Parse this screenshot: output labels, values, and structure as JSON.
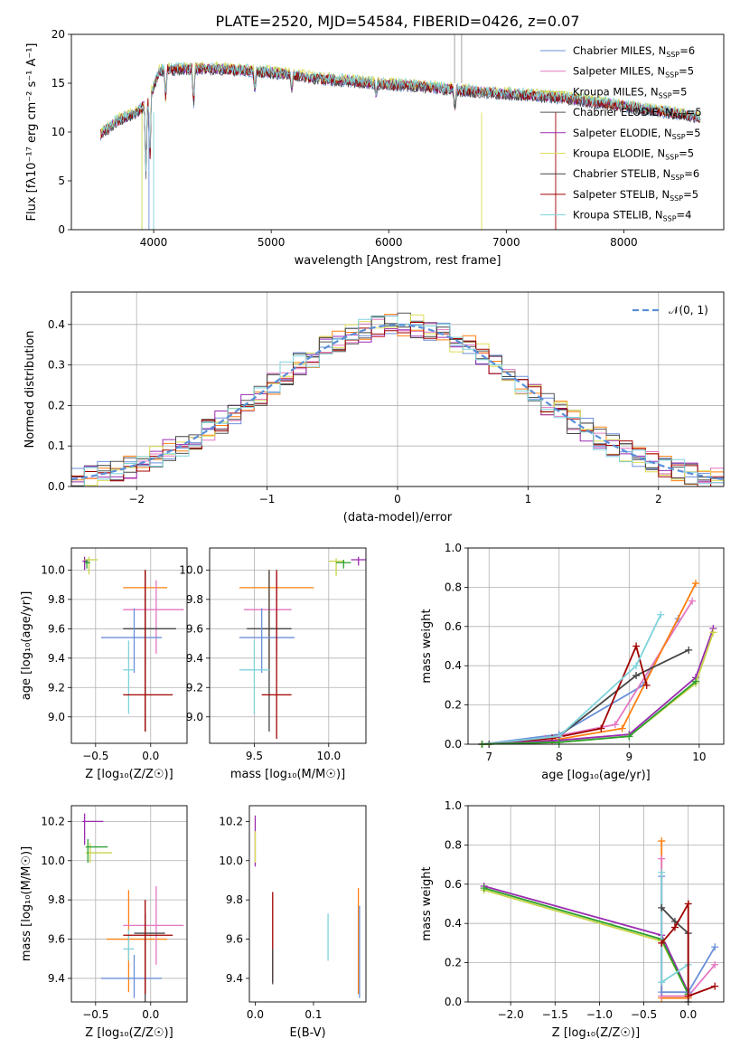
{
  "figure_title": "PLATE=2520, MJD=54584, FIBERID=0426, z=0.07",
  "colors": {
    "chabrier_miles": "#6a90d8",
    "salpeter_miles": "#e377c2",
    "kroupa_miles": "#c8d44a",
    "chabrier_elodie": "#555555",
    "salpeter_elodie": "#9a2bb0",
    "kroupa_elodie": "#dddd55",
    "chabrier_stelib": "#444444",
    "salpeter_stelib": "#a00000",
    "kroupa_stelib": "#7fd3dc",
    "orange": "#ff7f0e",
    "green": "#2ca02c",
    "normal": "#5a8fd8"
  },
  "chart_data": [
    {
      "id": "spectrum",
      "type": "line",
      "xlabel": "wavelength [Angstrom, rest frame]",
      "ylabel": "Flux [f",
      "ylabel_full": "Flux [fλ10⁻¹⁷ erg cm⁻² s⁻¹ A⁻¹]",
      "xlim": [
        3300,
        8850
      ],
      "ylim": [
        0,
        20
      ],
      "xticks": [
        "4000",
        "5000",
        "6000",
        "7000",
        "8000"
      ],
      "yticks": [
        "0",
        "5",
        "10",
        "15",
        "20"
      ],
      "legend_position": "top-right",
      "legend": [
        {
          "label": "Chabrier MILES, N",
          "sub": "SSP",
          "tail": "=6",
          "color": "#6a90d8"
        },
        {
          "label": "Salpeter MILES, N",
          "sub": "SSP",
          "tail": "=5",
          "color": "#e377c2"
        },
        {
          "label": "Kroupa MILES, N",
          "sub": "SSP",
          "tail": "=5",
          "color": "#c8d44a"
        },
        {
          "label": "Chabrier ELODIE, N",
          "sub": "SSP",
          "tail": "=5",
          "color": "#555555"
        },
        {
          "label": "Salpeter ELODIE, N",
          "sub": "SSP",
          "tail": "=5",
          "color": "#9a2bb0"
        },
        {
          "label": "Kroupa ELODIE, N",
          "sub": "SSP",
          "tail": "=5",
          "color": "#dddd55"
        },
        {
          "label": "Chabrier STELIB, N",
          "sub": "SSP",
          "tail": "=6",
          "color": "#444444"
        },
        {
          "label": "Salpeter STELIB, N",
          "sub": "SSP",
          "tail": "=5",
          "color": "#a00000"
        },
        {
          "label": "Kroupa STELIB, N",
          "sub": "SSP",
          "tail": "=4",
          "color": "#7fd3dc"
        }
      ],
      "continuum": [
        [
          3550,
          9.8
        ],
        [
          3700,
          11.2
        ],
        [
          3850,
          12.0
        ],
        [
          3950,
          13.0
        ],
        [
          4050,
          16.3
        ],
        [
          4200,
          16.5
        ],
        [
          4500,
          16.5
        ],
        [
          4800,
          16.3
        ],
        [
          5100,
          16.0
        ],
        [
          5400,
          15.5
        ],
        [
          5700,
          15.2
        ],
        [
          6000,
          14.9
        ],
        [
          6300,
          14.7
        ],
        [
          6600,
          14.3
        ],
        [
          6900,
          14.0
        ],
        [
          7200,
          13.8
        ],
        [
          7500,
          13.5
        ],
        [
          7800,
          13.0
        ],
        [
          8100,
          12.5
        ],
        [
          8400,
          12.0
        ],
        [
          8650,
          11.5
        ]
      ],
      "absorption": [
        [
          3934,
          7
        ],
        [
          3968,
          7
        ],
        [
          4102,
          3
        ],
        [
          4340,
          4
        ],
        [
          4861,
          2
        ],
        [
          5175,
          1.5
        ],
        [
          5893,
          1.2
        ],
        [
          6563,
          2
        ]
      ],
      "spikes_down": [
        [
          3900,
          0
        ],
        [
          3960,
          0
        ],
        [
          4000,
          0
        ],
        [
          6790,
          0
        ],
        [
          7420,
          0
        ]
      ],
      "spikes_up": [
        [
          6560,
          20
        ],
        [
          6620,
          20
        ]
      ]
    },
    {
      "id": "residuals",
      "type": "histogram",
      "xlabel": "(data-model)/error",
      "ylabel": "Normed distribution",
      "xlim": [
        -2.5,
        2.5
      ],
      "ylim": [
        0,
        0.48
      ],
      "xticks": [
        "−2",
        "−1",
        "0",
        "1",
        "2"
      ],
      "yticks": [
        "0.0",
        "0.1",
        "0.2",
        "0.3",
        "0.4"
      ],
      "grid": true,
      "legend_position": "top-right",
      "legend": [
        {
          "label": "𝒩(0, 1)",
          "color": "#5a8fd8",
          "style": "dashed"
        }
      ],
      "bin_width": 0.1
    },
    {
      "id": "age_vs_Z",
      "type": "errorbar",
      "xlabel": "Z [log₁₀(Z/Z☉)]",
      "ylabel": "age  [log₁₀(age/yr)]",
      "xlim": [
        -0.72,
        0.33
      ],
      "ylim": [
        8.82,
        10.15
      ],
      "xticks": [
        "−0.5",
        "0.0"
      ],
      "yticks": [
        "9.0",
        "9.2",
        "9.4",
        "9.6",
        "9.8",
        "10.0"
      ],
      "grid": true,
      "points": [
        {
          "x": -0.6,
          "y": 10.05,
          "color": "#9a2bb0"
        },
        {
          "x": -0.55,
          "y": 10.06,
          "color": "#c8d44a"
        },
        {
          "x": -0.57,
          "y": 10.05,
          "color": "#2ca02c"
        },
        {
          "x": -0.05,
          "y": 9.88,
          "color": "#ff7f0e"
        },
        {
          "x": 0.05,
          "y": 9.73,
          "color": "#e377c2"
        },
        {
          "x": -0.05,
          "y": 9.6,
          "color": "#444444"
        },
        {
          "x": -0.15,
          "y": 9.54,
          "color": "#6a90d8"
        },
        {
          "x": -0.2,
          "y": 9.32,
          "color": "#7fd3dc"
        },
        {
          "x": -0.05,
          "y": 9.15,
          "color": "#a00000"
        }
      ]
    },
    {
      "id": "age_vs_mass",
      "type": "errorbar",
      "xlabel": "mass [log₁₀(M/M☉)]",
      "ylabel": "",
      "xlim": [
        9.2,
        10.25
      ],
      "ylim": [
        8.82,
        10.15
      ],
      "xticks": [
        "9.5",
        "10.0"
      ],
      "yticks": [
        "9.0",
        "9.2",
        "9.4",
        "9.6",
        "9.8",
        "10.0"
      ],
      "grid": true
    },
    {
      "id": "weight_vs_age",
      "type": "line",
      "xlabel": "age  [log₁₀(age/yr)]",
      "ylabel": "mass weight",
      "xlim": [
        6.7,
        10.35
      ],
      "ylim": [
        0,
        1
      ],
      "xticks": [
        "7",
        "8",
        "9",
        "10"
      ],
      "yticks": [
        "0.0",
        "0.2",
        "0.4",
        "0.6",
        "0.8",
        "1.0"
      ],
      "grid": true,
      "series": [
        {
          "color": "#6a90d8",
          "x": [
            6.9,
            8.0,
            9.2,
            9.7
          ],
          "y": [
            0.0,
            0.05,
            0.3,
            0.64
          ]
        },
        {
          "color": "#e377c2",
          "x": [
            6.9,
            7.8,
            8.8,
            9.9
          ],
          "y": [
            0.0,
            0.03,
            0.1,
            0.73
          ]
        },
        {
          "color": "#ff7f0e",
          "x": [
            6.9,
            7.9,
            8.9,
            9.95
          ],
          "y": [
            0.0,
            0.02,
            0.08,
            0.82
          ]
        },
        {
          "color": "#444444",
          "x": [
            7.0,
            8.0,
            9.1,
            9.85
          ],
          "y": [
            0.0,
            0.04,
            0.35,
            0.48
          ]
        },
        {
          "color": "#a00000",
          "x": [
            6.9,
            7.9,
            8.6,
            9.1,
            9.25
          ],
          "y": [
            0.0,
            0.03,
            0.08,
            0.5,
            0.3
          ]
        },
        {
          "color": "#7fd3dc",
          "x": [
            6.9,
            8.0,
            9.1,
            9.45
          ],
          "y": [
            0.0,
            0.04,
            0.4,
            0.66
          ]
        },
        {
          "color": "#9a2bb0",
          "x": [
            6.9,
            8.0,
            9.0,
            9.95,
            10.2
          ],
          "y": [
            0.0,
            0.02,
            0.05,
            0.34,
            0.59
          ]
        },
        {
          "color": "#c8d44a",
          "x": [
            6.9,
            8.0,
            9.0,
            9.95,
            10.2
          ],
          "y": [
            0.0,
            0.01,
            0.04,
            0.31,
            0.57
          ]
        },
        {
          "color": "#2ca02c",
          "x": [
            6.9,
            8.0,
            9.0,
            9.95
          ],
          "y": [
            0.0,
            0.01,
            0.04,
            0.32
          ]
        }
      ]
    },
    {
      "id": "mass_vs_Z",
      "type": "errorbar",
      "xlabel": "Z [log₁₀(Z/Z☉)]",
      "ylabel": "mass [log₁₀(M/M☉)]",
      "xlim": [
        -0.72,
        0.33
      ],
      "ylim": [
        9.28,
        10.28
      ],
      "xticks": [
        "−0.5",
        "0.0"
      ],
      "yticks": [
        "9.4",
        "9.6",
        "9.8",
        "10.0",
        "10.2"
      ],
      "grid": true
    },
    {
      "id": "mass_vs_ebv",
      "type": "errorbar",
      "xlabel": "E(B-V)",
      "ylabel": "",
      "xlim": [
        -0.01,
        0.19
      ],
      "ylim": [
        9.28,
        10.28
      ],
      "xticks": [
        "0.0",
        "0.1"
      ],
      "yticks": [
        "9.4",
        "9.6",
        "9.8",
        "10.0",
        "10.2"
      ],
      "grid": false
    },
    {
      "id": "weight_vs_Z",
      "type": "line",
      "xlabel": "Z [log₁₀(Z/Z☉)]",
      "ylabel": "mass weight",
      "xlim": [
        -2.48,
        0.4
      ],
      "ylim": [
        0,
        1
      ],
      "xticks": [
        "−2.0",
        "−1.5",
        "−1.0",
        "−0.5",
        "0.0"
      ],
      "yticks": [
        "0.0",
        "0.2",
        "0.4",
        "0.6",
        "0.8",
        "1.0"
      ],
      "grid": true,
      "series": [
        {
          "color": "#9a2bb0",
          "x": [
            -2.3,
            -0.3,
            0.0
          ],
          "y": [
            0.59,
            0.34,
            0.05
          ]
        },
        {
          "color": "#c8d44a",
          "x": [
            -2.3,
            -0.3,
            0.0
          ],
          "y": [
            0.57,
            0.31,
            0.04
          ]
        },
        {
          "color": "#2ca02c",
          "x": [
            -2.3,
            -0.3,
            0.0
          ],
          "y": [
            0.58,
            0.32,
            0.04
          ]
        },
        {
          "color": "#ff7f0e",
          "x": [
            -0.3,
            -0.3,
            0.0
          ],
          "y": [
            0.82,
            0.02,
            0.02
          ]
        },
        {
          "color": "#e377c2",
          "x": [
            -0.3,
            -0.3,
            0.0,
            0.3
          ],
          "y": [
            0.73,
            0.03,
            0.03,
            0.19
          ]
        },
        {
          "color": "#6a90d8",
          "x": [
            -0.3,
            -0.3,
            0.0,
            0.3
          ],
          "y": [
            0.64,
            0.05,
            0.05,
            0.28
          ]
        },
        {
          "color": "#7fd3dc",
          "x": [
            -0.3,
            -0.3,
            0.0
          ],
          "y": [
            0.66,
            0.1,
            0.19
          ]
        },
        {
          "color": "#444444",
          "x": [
            -0.3,
            -0.15,
            0.0,
            0.0
          ],
          "y": [
            0.48,
            0.41,
            0.35,
            0.0
          ]
        },
        {
          "color": "#a00000",
          "x": [
            -0.3,
            -0.15,
            0.0,
            0.0,
            0.3
          ],
          "y": [
            0.3,
            0.38,
            0.5,
            0.03,
            0.08
          ]
        }
      ]
    }
  ]
}
